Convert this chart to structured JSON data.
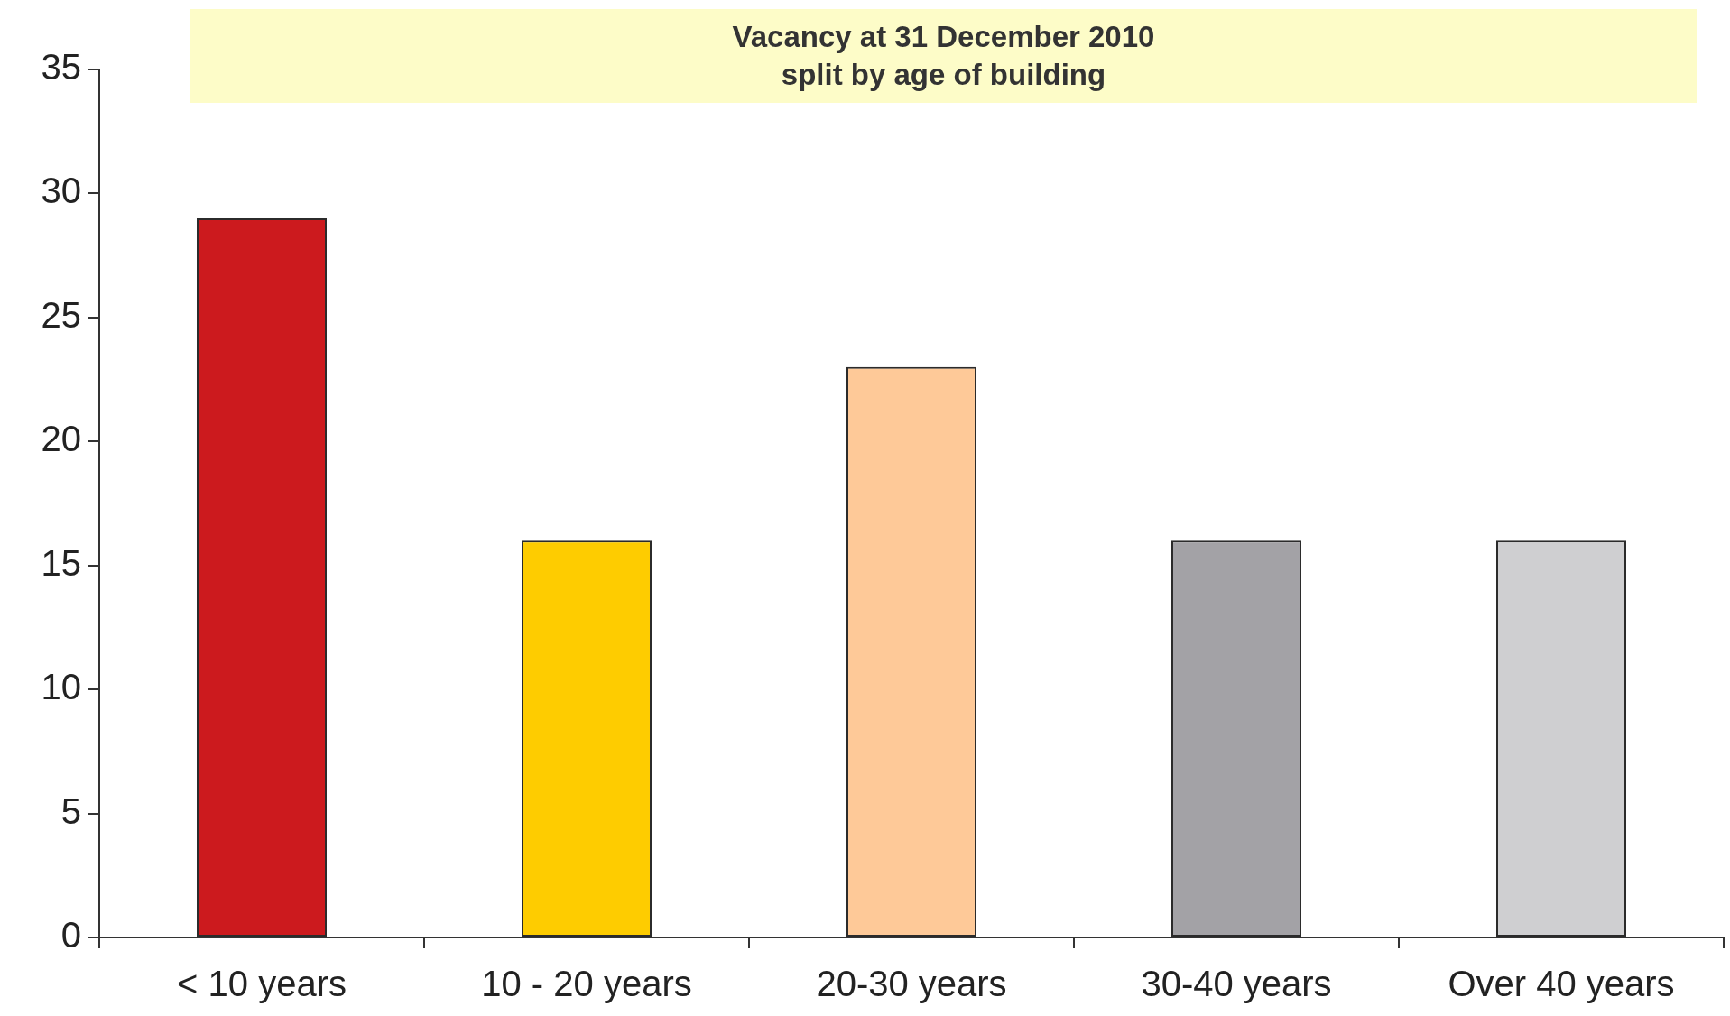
{
  "chart_data": {
    "type": "bar",
    "title": "Vacancy at 31 December 2010\nsplit by age of building",
    "categories": [
      "< 10 years",
      "10 - 20 years",
      "20-30 years",
      "30-40 years",
      "Over 40 years"
    ],
    "values": [
      29,
      16,
      23,
      16,
      16
    ],
    "colors": [
      "#cc1a1e",
      "#fecc00",
      "#fec998",
      "#a3a2a6",
      "#cfcfd1"
    ],
    "ylim": [
      0,
      35
    ],
    "yticks": [
      0,
      5,
      10,
      15,
      20,
      25,
      30,
      35
    ],
    "grid": false,
    "legend": false
  }
}
